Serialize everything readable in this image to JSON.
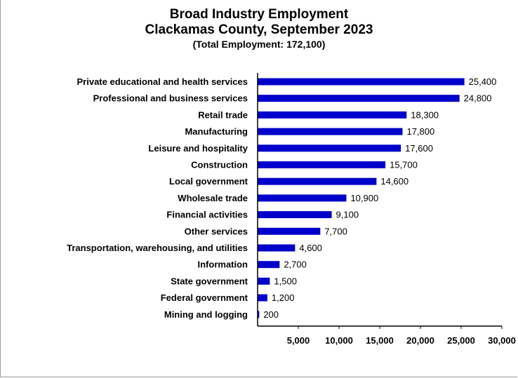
{
  "chart_data": {
    "type": "bar",
    "orientation": "horizontal",
    "title": "Broad Industry Employment",
    "subtitle": "Clackamas County, September 2023",
    "note": "(Total Employment: 172,100)",
    "categories": [
      "Private educational and health services",
      "Professional and business services",
      "Retail trade",
      "Manufacturing",
      "Leisure and hospitality",
      "Construction",
      "Local government",
      "Wholesale trade",
      "Financial activities",
      "Other services",
      "Transportation, warehousing, and utilities",
      "Information",
      "State government",
      "Federal government",
      "Mining and logging"
    ],
    "values": [
      25400,
      24800,
      18300,
      17800,
      17600,
      15700,
      14600,
      10900,
      9100,
      7700,
      4600,
      2700,
      1500,
      1200,
      200
    ],
    "value_labels": [
      "25,400",
      "24,800",
      "18,300",
      "17,800",
      "17,600",
      "15,700",
      "14,600",
      "10,900",
      "9,100",
      "7,700",
      "4,600",
      "2,700",
      "1,500",
      "1,200",
      "200"
    ],
    "xlim": [
      0,
      30000
    ],
    "x_ticks": [
      5000,
      10000,
      15000,
      20000,
      25000,
      30000
    ],
    "x_tick_labels": [
      "5,000",
      "10,000",
      "15,000",
      "20,000",
      "25,000",
      "30,000"
    ],
    "xlabel": "",
    "ylabel": "",
    "grid": false,
    "legend": "none",
    "bar_color": "#0000CC"
  }
}
